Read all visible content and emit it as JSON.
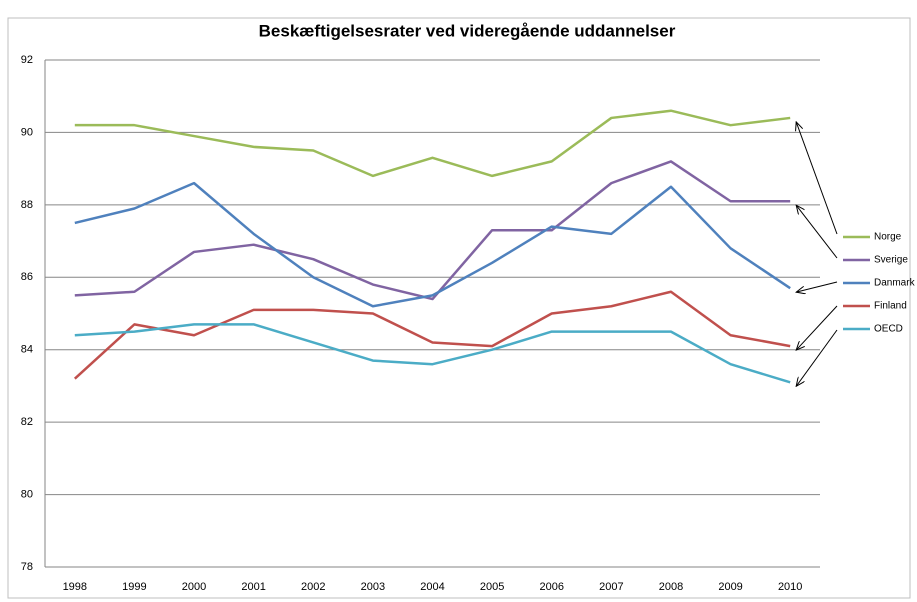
{
  "chart_data": {
    "type": "line",
    "title": "Beskæftigelsesrater ved videregående uddannelser",
    "categories": [
      "1998",
      "1999",
      "2000",
      "2001",
      "2002",
      "2003",
      "2004",
      "2005",
      "2006",
      "2007",
      "2008",
      "2009",
      "2010"
    ],
    "series": [
      {
        "name": "Norge",
        "color": "#9bbb59",
        "values": [
          90.2,
          90.2,
          89.9,
          89.6,
          89.5,
          88.8,
          89.3,
          88.8,
          89.2,
          90.4,
          90.6,
          90.2,
          90.4
        ]
      },
      {
        "name": "Sverige",
        "color": "#8064a2",
        "values": [
          85.5,
          85.6,
          86.7,
          86.9,
          86.5,
          85.8,
          85.4,
          87.3,
          87.3,
          88.6,
          89.2,
          88.1,
          88.1
        ]
      },
      {
        "name": "Danmark",
        "color": "#4f81bd",
        "values": [
          87.5,
          87.9,
          88.6,
          87.2,
          86.0,
          85.2,
          85.5,
          86.4,
          87.4,
          87.2,
          88.5,
          86.8,
          85.7
        ]
      },
      {
        "name": "Finland",
        "color": "#c0504d",
        "values": [
          83.2,
          84.7,
          84.4,
          85.1,
          85.1,
          85.0,
          84.2,
          84.1,
          85.0,
          85.2,
          85.6,
          84.4,
          84.1
        ]
      },
      {
        "name": "OECD",
        "color": "#4bacc6",
        "values": [
          84.4,
          84.5,
          84.7,
          84.7,
          84.2,
          83.7,
          83.6,
          84.0,
          84.5,
          84.5,
          84.5,
          83.6,
          83.1
        ]
      }
    ],
    "ylim": [
      78,
      92
    ],
    "yticks": [
      78,
      80,
      82,
      84,
      86,
      88,
      90,
      92
    ],
    "grid": true,
    "legend": "right"
  }
}
